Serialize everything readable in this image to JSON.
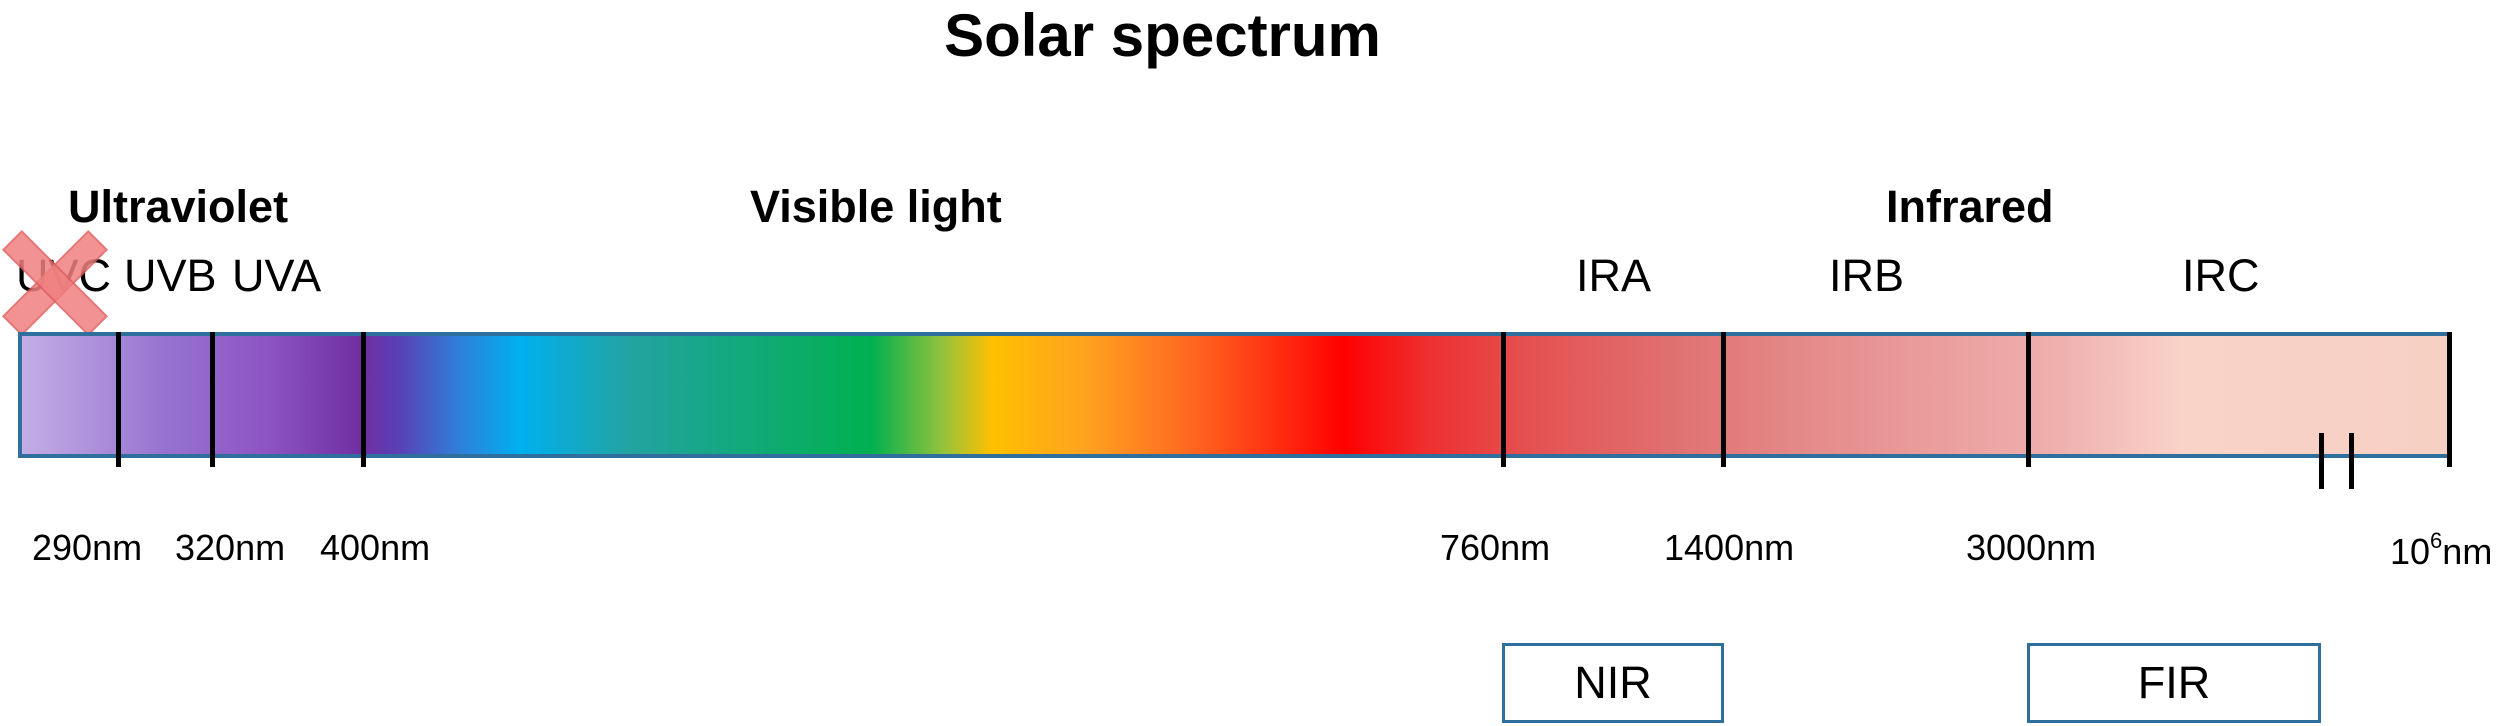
{
  "title": "Solar spectrum",
  "groups": {
    "ultraviolet": "Ultraviolet",
    "visible": "Visible light",
    "infrared": "Infrared"
  },
  "bands": {
    "uvc": "UVC",
    "uvb": "UVB",
    "uva": "UVA",
    "ira": "IRA",
    "irb": "IRB",
    "irc": "IRC"
  },
  "ticks": {
    "t290": "290nm",
    "t320": "320nm",
    "t400": "400nm",
    "t760": "760nm",
    "t1400": "1400nm",
    "t3000": "3000nm",
    "t1e6_base": "10",
    "t1e6_exp": "6",
    "t1e6_unit": "nm"
  },
  "boxes": {
    "nir": "NIR",
    "fir": "FIR"
  },
  "colors": {
    "bar_border": "#2e6f9e",
    "cross_fill": "#f08080",
    "cross_stroke": "#e06060"
  },
  "icons": {
    "uvc_marker": "cross-icon"
  }
}
